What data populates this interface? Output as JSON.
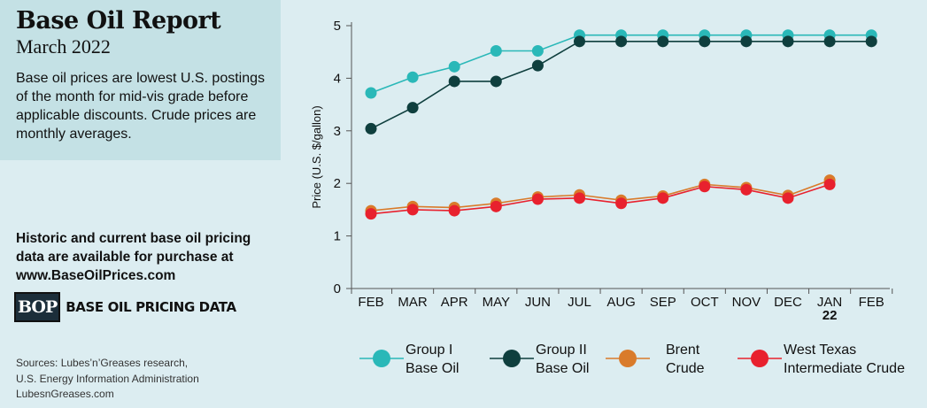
{
  "report": {
    "title": "Base Oil Report",
    "subtitle": "March 2022",
    "description": "Base oil prices are lowest U.S. postings of the month for mid-vis grade before applicable discounts. Crude prices are monthly averages."
  },
  "promo": {
    "line": "Historic and current base oil pricing data are available for purchase at",
    "url": "www.BaseOilPrices.com"
  },
  "logo": {
    "mark": "BOP",
    "label": "BASE OIL PRICING DATA"
  },
  "sources": {
    "line1": "Sources: Lubes’n’Greases research,",
    "line2": "U.S. Energy Information Administration",
    "site": "LubesnGreases.com"
  },
  "chart_data": {
    "type": "line",
    "categories": [
      "FEB",
      "MAR",
      "APR",
      "MAY",
      "JUN",
      "JUL",
      "AUG",
      "SEP",
      "OCT",
      "NOV",
      "DEC",
      "JAN",
      "FEB"
    ],
    "year_label": "22",
    "ylabel": "Price (U.S. $/gallon)",
    "ylim": [
      0,
      5
    ],
    "yticks": [
      0,
      1,
      2,
      3,
      4,
      5
    ],
    "grid": false,
    "legend_position": "bottom",
    "series": [
      {
        "name": "Group I Base Oil",
        "legend_lines": [
          "Group I",
          "Base Oil"
        ],
        "color": "#2ab8b8",
        "values": [
          3.72,
          4.02,
          4.22,
          4.52,
          4.52,
          4.82,
          4.82,
          4.82,
          4.82,
          4.82,
          4.82,
          4.82,
          4.82
        ]
      },
      {
        "name": "Group II Base Oil",
        "legend_lines": [
          "Group II",
          "Base Oil"
        ],
        "color": "#0f3f3e",
        "values": [
          3.04,
          3.44,
          3.94,
          3.94,
          4.24,
          4.7,
          4.7,
          4.7,
          4.7,
          4.7,
          4.7,
          4.7,
          4.7
        ]
      },
      {
        "name": "Brent Crude",
        "legend_lines": [
          "Brent",
          "Crude"
        ],
        "color": "#d97b2b",
        "values": [
          1.48,
          1.56,
          1.54,
          1.62,
          1.74,
          1.78,
          1.68,
          1.76,
          1.98,
          1.92,
          1.77,
          2.06,
          null
        ]
      },
      {
        "name": "West Texas Intermediate Crude",
        "legend_lines": [
          "West Texas",
          "Intermediate Crude"
        ],
        "color": "#e8212e",
        "values": [
          1.42,
          1.5,
          1.48,
          1.56,
          1.7,
          1.72,
          1.62,
          1.72,
          1.94,
          1.88,
          1.72,
          1.98,
          null
        ]
      }
    ]
  }
}
